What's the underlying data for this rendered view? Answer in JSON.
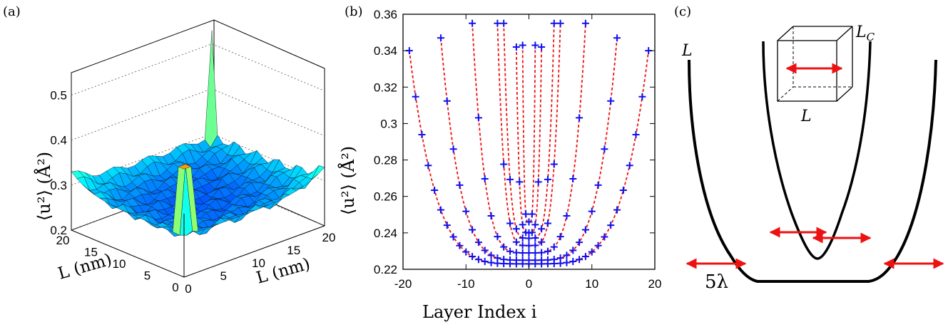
{
  "panel_labels": {
    "a": "(a)",
    "b": "(b)",
    "c": "(c)"
  },
  "chart_data": [
    {
      "type": "surface3d",
      "panel": "(a)",
      "zlabel": "⟨u²⟩ (Å²)",
      "xlabel": "L (nm)",
      "ylabel": "L (nm)",
      "zticks": [
        "0.2",
        "0.3",
        "0.4",
        "0.5"
      ],
      "xticks": [
        "0",
        "5",
        "10",
        "15",
        "20"
      ],
      "yticks": [
        "0",
        "5",
        "10",
        "15",
        "20"
      ],
      "zlim": [
        0.2,
        0.55
      ],
      "colormap": "jet"
    },
    {
      "type": "scatter",
      "panel": "(b)",
      "xlabel": "Layer Index i",
      "ylabel": "⟨u²⟩ (Å²)",
      "xlim": [
        -20,
        20
      ],
      "ylim": [
        0.22,
        0.36
      ],
      "xticks": [
        "-20",
        "-10",
        "0",
        "10",
        "20"
      ],
      "yticks": [
        "0.22",
        "0.24",
        "0.26",
        "0.28",
        "0.3",
        "0.32",
        "0.34",
        "0.36"
      ],
      "marker_color": "#1010ee",
      "line_color": "#ee1111",
      "series": [
        {
          "half": 1,
          "min": 0.246,
          "max": 0.343
        },
        {
          "half": 2,
          "min": 0.24,
          "max": 0.342
        },
        {
          "half": 4,
          "min": 0.237,
          "max": 0.355
        },
        {
          "half": 5,
          "min": 0.233,
          "max": 0.355
        },
        {
          "half": 9,
          "min": 0.229,
          "max": 0.355
        },
        {
          "half": 14,
          "min": 0.225,
          "max": 0.347
        },
        {
          "half": 19,
          "min": 0.223,
          "max": 0.34
        }
      ]
    }
  ],
  "schematic": {
    "label_L": "L",
    "label_LC": "L",
    "label_LC_sub": "C",
    "label_cube_L": "L",
    "label_5lambda": "5λ",
    "arrow_color": "#ee1111"
  }
}
